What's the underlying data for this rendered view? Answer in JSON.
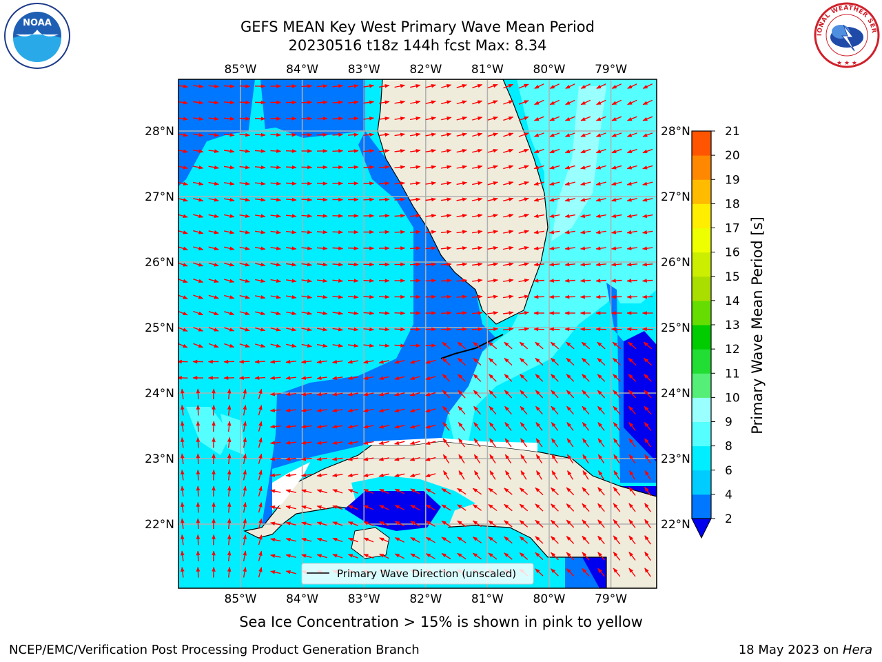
{
  "title_line1": "GEFS MEAN Key West Primary Wave Mean Period",
  "title_line2": "20230516 t18z 144h fcst   Max: 8.34",
  "lon_ticks": [
    "85°W",
    "84°W",
    "83°W",
    "82°W",
    "81°W",
    "80°W",
    "79°W"
  ],
  "lat_ticks": [
    "22°N",
    "23°N",
    "24°N",
    "25°N",
    "26°N",
    "27°N",
    "28°N"
  ],
  "legend_label": "Primary Wave Direction (unscaled)",
  "colorbar": {
    "label": "Primary Wave Mean Period [s]",
    "ticks": [
      "2",
      "4",
      "6",
      "8",
      "9",
      "10",
      "11",
      "12",
      "13",
      "14",
      "15",
      "16",
      "17",
      "18",
      "19",
      "20",
      "21"
    ],
    "colors": [
      "#0077ff",
      "#00ccff",
      "#00eeff",
      "#55ffff",
      "#99ffff",
      "#55ee77",
      "#22dd33",
      "#00cc00",
      "#66dd00",
      "#aadd00",
      "#ccee00",
      "#eeff00",
      "#ffee00",
      "#ffbb00",
      "#ff8800",
      "#ff5500",
      "#ff2200",
      "#ff0000"
    ],
    "under_color": "#0000ee"
  },
  "ice_note": "Sea Ice Concentration > 15% is shown in pink to yellow",
  "footer_left": "NCEP/EMC/Verification Post Processing Product Generation Branch",
  "footer_right_date": "18 May 2023 on ",
  "footer_right_host": "Hera",
  "logos": {
    "noaa_text": "NOAA",
    "nws_text": "NATIONAL WEATHER SERVICE"
  },
  "colors": {
    "land": "#efecdc",
    "ocean_dark": "#0077ff",
    "ocean_mid": "#00ccff",
    "ocean_light": "#55ffff",
    "ocean_lightest": "#99ffff",
    "deep": "#0000ee",
    "arrows": "#ff0000",
    "grid": "#b0b0b0"
  }
}
